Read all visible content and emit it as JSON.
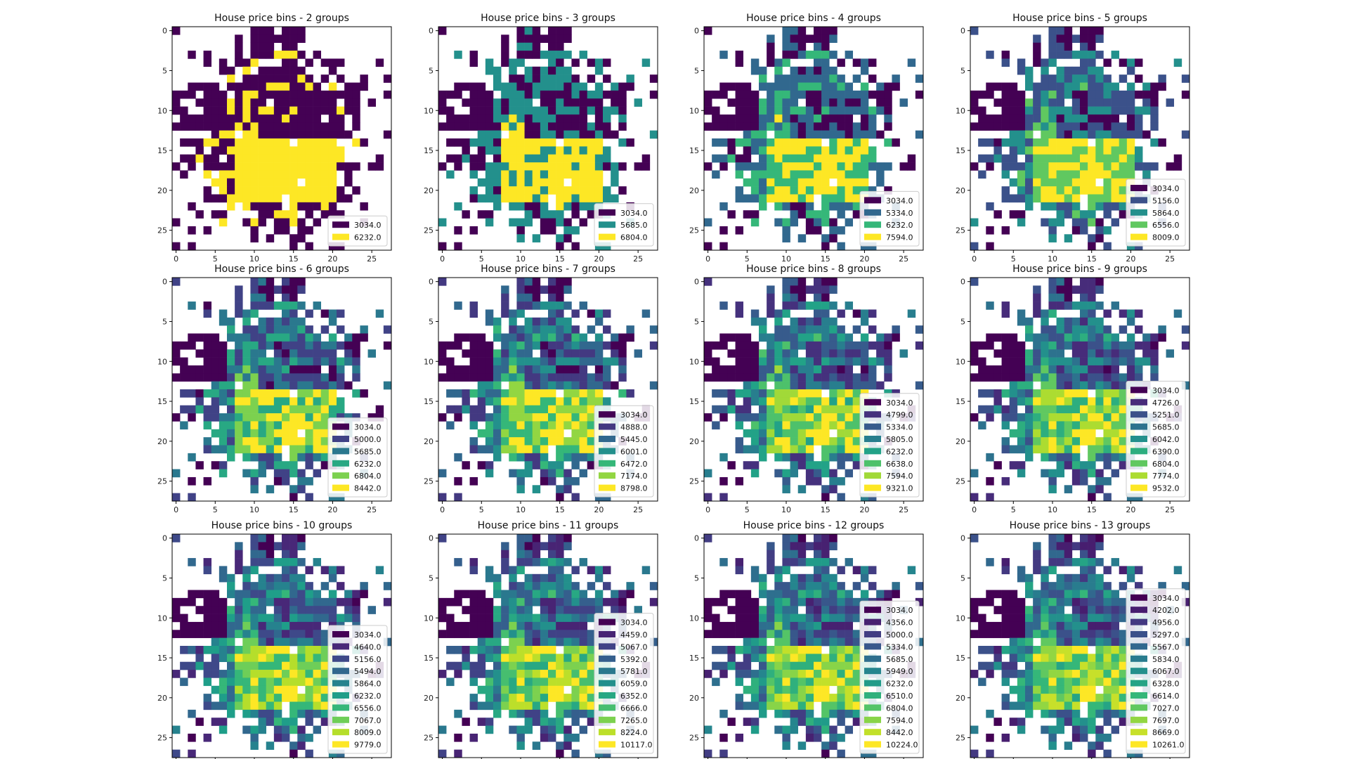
{
  "figure": {
    "colormap": "viridis",
    "grid_size": 28
  },
  "chart_data": [
    {
      "type": "heatmap",
      "title": "House price bins - 2 groups",
      "xlabel": "",
      "ylabel": "",
      "x_ticks": [
        "0",
        "5",
        "10",
        "15",
        "20",
        "25"
      ],
      "y_ticks": [
        "0",
        "5",
        "10",
        "15",
        "20",
        "25"
      ],
      "legend": [
        "3034.0",
        "6232.0"
      ],
      "legend_position": "lower-right"
    },
    {
      "type": "heatmap",
      "title": "House price bins - 3 groups",
      "xlabel": "",
      "ylabel": "",
      "x_ticks": [
        "0",
        "5",
        "10",
        "15",
        "20",
        "25"
      ],
      "y_ticks": [
        "0",
        "5",
        "10",
        "15",
        "20",
        "25"
      ],
      "legend": [
        "3034.0",
        "5685.0",
        "6804.0"
      ],
      "legend_position": "lower-right"
    },
    {
      "type": "heatmap",
      "title": "House price bins - 4 groups",
      "xlabel": "",
      "ylabel": "",
      "x_ticks": [
        "0",
        "5",
        "10",
        "15",
        "20",
        "25"
      ],
      "y_ticks": [
        "0",
        "5",
        "10",
        "15",
        "20",
        "25"
      ],
      "legend": [
        "3034.0",
        "5334.0",
        "6232.0",
        "7594.0"
      ],
      "legend_position": "lower-right"
    },
    {
      "type": "heatmap",
      "title": "House price bins - 5 groups",
      "xlabel": "",
      "ylabel": "",
      "x_ticks": [
        "0",
        "5",
        "10",
        "15",
        "20",
        "25"
      ],
      "y_ticks": [
        "0",
        "5",
        "10",
        "15",
        "20",
        "25"
      ],
      "legend": [
        "3034.0",
        "5156.0",
        "5864.0",
        "6556.0",
        "8009.0"
      ],
      "legend_position": "lower-right"
    },
    {
      "type": "heatmap",
      "title": "House price bins - 6 groups",
      "xlabel": "",
      "ylabel": "",
      "x_ticks": [
        "0",
        "5",
        "10",
        "15",
        "20",
        "25"
      ],
      "y_ticks": [
        "0",
        "5",
        "10",
        "15",
        "20",
        "25"
      ],
      "legend": [
        "3034.0",
        "5000.0",
        "5685.0",
        "6232.0",
        "6804.0",
        "8442.0"
      ],
      "legend_position": "lower-right"
    },
    {
      "type": "heatmap",
      "title": "House price bins - 7 groups",
      "xlabel": "",
      "ylabel": "",
      "x_ticks": [
        "0",
        "5",
        "10",
        "15",
        "20",
        "25"
      ],
      "y_ticks": [
        "0",
        "5",
        "10",
        "15",
        "20",
        "25"
      ],
      "legend": [
        "3034.0",
        "4888.0",
        "5445.0",
        "6001.0",
        "6472.0",
        "7174.0",
        "8798.0"
      ],
      "legend_position": "lower-right"
    },
    {
      "type": "heatmap",
      "title": "House price bins - 8 groups",
      "xlabel": "",
      "ylabel": "",
      "x_ticks": [
        "0",
        "5",
        "10",
        "15",
        "20",
        "25"
      ],
      "y_ticks": [
        "0",
        "5",
        "10",
        "15",
        "20",
        "25"
      ],
      "legend": [
        "3034.0",
        "4799.0",
        "5334.0",
        "5805.0",
        "6232.0",
        "6638.0",
        "7594.0",
        "9321.0"
      ],
      "legend_position": "lower-right"
    },
    {
      "type": "heatmap",
      "title": "House price bins - 9 groups",
      "xlabel": "",
      "ylabel": "",
      "x_ticks": [
        "0",
        "5",
        "10",
        "15",
        "20",
        "25"
      ],
      "y_ticks": [
        "0",
        "5",
        "10",
        "15",
        "20",
        "25"
      ],
      "legend": [
        "3034.0",
        "4726.0",
        "5251.0",
        "5685.0",
        "6042.0",
        "6390.0",
        "6804.0",
        "7774.0",
        "9532.0"
      ],
      "legend_position": "lower-right"
    },
    {
      "type": "heatmap",
      "title": "House price bins - 10 groups",
      "xlabel": "",
      "ylabel": "",
      "x_ticks": [
        "0",
        "5",
        "10",
        "15",
        "20",
        "25"
      ],
      "y_ticks": [
        "0",
        "5",
        "10",
        "15",
        "20",
        "25"
      ],
      "legend": [
        "3034.0",
        "4640.0",
        "5156.0",
        "5494.0",
        "5864.0",
        "6232.0",
        "6556.0",
        "7067.0",
        "8009.0",
        "9779.0"
      ],
      "legend_position": "lower-right"
    },
    {
      "type": "heatmap",
      "title": "House price bins - 11 groups",
      "xlabel": "",
      "ylabel": "",
      "x_ticks": [
        "0",
        "5",
        "10",
        "15",
        "20",
        "25"
      ],
      "y_ticks": [
        "0",
        "5",
        "10",
        "15",
        "20",
        "25"
      ],
      "legend": [
        "3034.0",
        "4459.0",
        "5067.0",
        "5392.0",
        "5781.0",
        "6059.0",
        "6352.0",
        "6666.0",
        "7265.0",
        "8224.0",
        "10117.0"
      ],
      "legend_position": "lower-right"
    },
    {
      "type": "heatmap",
      "title": "House price bins - 12 groups",
      "xlabel": "",
      "ylabel": "",
      "x_ticks": [
        "0",
        "5",
        "10",
        "15",
        "20",
        "25"
      ],
      "y_ticks": [
        "0",
        "5",
        "10",
        "15",
        "20",
        "25"
      ],
      "legend": [
        "3034.0",
        "4356.0",
        "5000.0",
        "5334.0",
        "5685.0",
        "5949.0",
        "6232.0",
        "6510.0",
        "6804.0",
        "7594.0",
        "8442.0",
        "10224.0"
      ],
      "legend_position": "lower-right"
    },
    {
      "type": "heatmap",
      "title": "House price bins - 13 groups",
      "xlabel": "",
      "ylabel": "",
      "x_ticks": [
        "0",
        "5",
        "10",
        "15",
        "20",
        "25"
      ],
      "y_ticks": [
        "0",
        "5",
        "10",
        "15",
        "20",
        "25"
      ],
      "legend": [
        "3034.0",
        "4202.0",
        "4956.0",
        "5297.0",
        "5567.0",
        "5834.0",
        "6067.0",
        "6328.0",
        "6614.0",
        "7027.0",
        "7697.0",
        "8669.0",
        "10261.0"
      ],
      "legend_position": "lower-right"
    }
  ]
}
